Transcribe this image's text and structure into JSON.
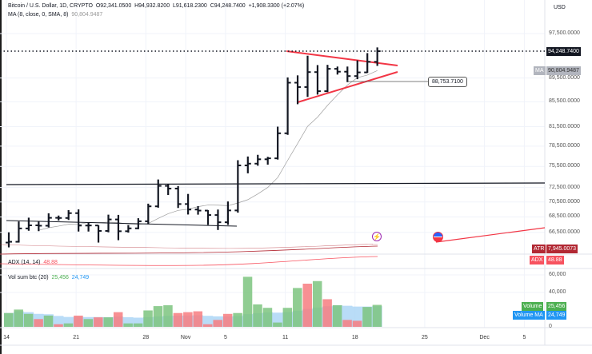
{
  "header": {
    "symbol": "Bitcoin / U.S. Dollar, 1D, CRYPTO",
    "open": "O92,341.0500",
    "high": "H94,932.8200",
    "low": "L91,618.2300",
    "close": "C94,248.7400",
    "change": "+1,908.3300 (+2.07%)",
    "ma_label": "MA (8, close, 0, SMA, 8)",
    "ma_value": "90,804.9487"
  },
  "currency": "USD",
  "price_axis": [
    "97,500.0000",
    "89,500.0000",
    "85,500.0000",
    "81,500.0000",
    "78,500.0000",
    "75,500.0000",
    "72,500.0000",
    "70,500.0000",
    "68,500.0000",
    "66,500.0000"
  ],
  "price_tags": {
    "last": "94,248.7400",
    "ma_label": "MA",
    "ma": "90,804.9487",
    "callout": "88,753.7100",
    "atr_label": "ATR",
    "atr": "7,945.0073",
    "adx_label": "ADX",
    "adx": "48.88"
  },
  "adx_legend": {
    "label": "ADX (14, 14)",
    "value": "48.88"
  },
  "volume_legend": {
    "label": "Vol sum btc (20)",
    "value": "25,456",
    "ma_value": "24,749"
  },
  "volume_axis": [
    "60,000",
    "40,000",
    "0"
  ],
  "volume_tags": {
    "volume_label": "Volume",
    "volume": "25,456",
    "ma_label": "Volume MA",
    "ma": "24,749"
  },
  "date_axis": [
    "14",
    "21",
    "28",
    "Nov",
    "5",
    "11",
    "18",
    "25",
    "Dec",
    "5"
  ],
  "colors": {
    "up_volume": "#7cc47f",
    "down_volume": "#f77c80",
    "volume_ma": "#a8d3f5",
    "trendline": "#f23645",
    "bars": "#131722",
    "ma_line": "#9e9e9e",
    "atr": "#b22833",
    "adx": "#f7525f"
  },
  "chart_data": {
    "type": "ohlc",
    "scale": "log",
    "dates": [
      "Oct 14",
      "Oct 15",
      "Oct 16",
      "Oct 17",
      "Oct 18",
      "Oct 19",
      "Oct 20",
      "Oct 21",
      "Oct 22",
      "Oct 23",
      "Oct 24",
      "Oct 25",
      "Oct 26",
      "Oct 27",
      "Oct 28",
      "Oct 29",
      "Oct 30",
      "Oct 31",
      "Nov 1",
      "Nov 2",
      "Nov 3",
      "Nov 4",
      "Nov 5",
      "Nov 6",
      "Nov 7",
      "Nov 8",
      "Nov 9",
      "Nov 10",
      "Nov 11",
      "Nov 12",
      "Nov 13",
      "Nov 14",
      "Nov 15",
      "Nov 16",
      "Nov 17",
      "Nov 18",
      "Nov 19",
      "Nov 20"
    ],
    "ohlc": [
      [
        65200,
        66500,
        64600,
        65300
      ],
      [
        65300,
        67900,
        65200,
        67000
      ],
      [
        67000,
        68400,
        66700,
        67400
      ],
      [
        67400,
        67940,
        66650,
        67350
      ],
      [
        67350,
        68980,
        67130,
        68380
      ],
      [
        68380,
        68680,
        68020,
        68360
      ],
      [
        68360,
        69400,
        68100,
        69000
      ],
      [
        69000,
        69500,
        66600,
        67370
      ],
      [
        67370,
        67800,
        66600,
        67380
      ],
      [
        67380,
        67420,
        65200,
        66680
      ],
      [
        66680,
        68800,
        66500,
        68170
      ],
      [
        68170,
        68770,
        65500,
        66640
      ],
      [
        66640,
        67430,
        66460,
        67010
      ],
      [
        67010,
        68330,
        66900,
        67930
      ],
      [
        67930,
        70270,
        67530,
        69910
      ],
      [
        69910,
        73620,
        69730,
        72720
      ],
      [
        72720,
        72960,
        71450,
        72340
      ],
      [
        72340,
        72700,
        69690,
        70220
      ],
      [
        70220,
        71600,
        68820,
        69480
      ],
      [
        69480,
        69940,
        68800,
        69340
      ],
      [
        69340,
        69400,
        67460,
        68750
      ],
      [
        68750,
        69480,
        66800,
        67800
      ],
      [
        67800,
        70570,
        67460,
        69360
      ],
      [
        69360,
        76400,
        69060,
        75640
      ],
      [
        75640,
        76950,
        74500,
        75900
      ],
      [
        75900,
        77200,
        75600,
        76540
      ],
      [
        76540,
        76900,
        75750,
        76680
      ],
      [
        76680,
        81500,
        76500,
        80470
      ],
      [
        80470,
        89600,
        80220,
        88700
      ],
      [
        88700,
        89960,
        85100,
        87960
      ],
      [
        87960,
        93430,
        86300,
        90530
      ],
      [
        90530,
        91760,
        86690,
        87260
      ],
      [
        87260,
        91800,
        87100,
        91100
      ],
      [
        91100,
        91500,
        90100,
        90600
      ],
      [
        90600,
        91500,
        88800,
        89840
      ],
      [
        89840,
        92600,
        89300,
        90480
      ],
      [
        90480,
        93900,
        90380,
        92340
      ],
      [
        92341.05,
        94932.82,
        91618.23,
        94248.74
      ]
    ],
    "volume": [
      16000,
      20000,
      15000,
      9000,
      13000,
      3000,
      4000,
      13000,
      9000,
      11000,
      11000,
      17000,
      4000,
      4000,
      19000,
      24000,
      25000,
      16000,
      17000,
      18000,
      3000,
      8000,
      15000,
      16000,
      58000,
      26000,
      22000,
      5000,
      22000,
      45000,
      50000,
      53000,
      32000,
      25000,
      8000,
      7000,
      23000,
      25456
    ],
    "volume_up": [
      true,
      true,
      true,
      false,
      true,
      false,
      true,
      false,
      true,
      false,
      true,
      false,
      true,
      true,
      true,
      true,
      true,
      false,
      false,
      false,
      false,
      false,
      false,
      true,
      true,
      true,
      true,
      true,
      true,
      true,
      false,
      true,
      false,
      true,
      false,
      false,
      true,
      true
    ]
  }
}
